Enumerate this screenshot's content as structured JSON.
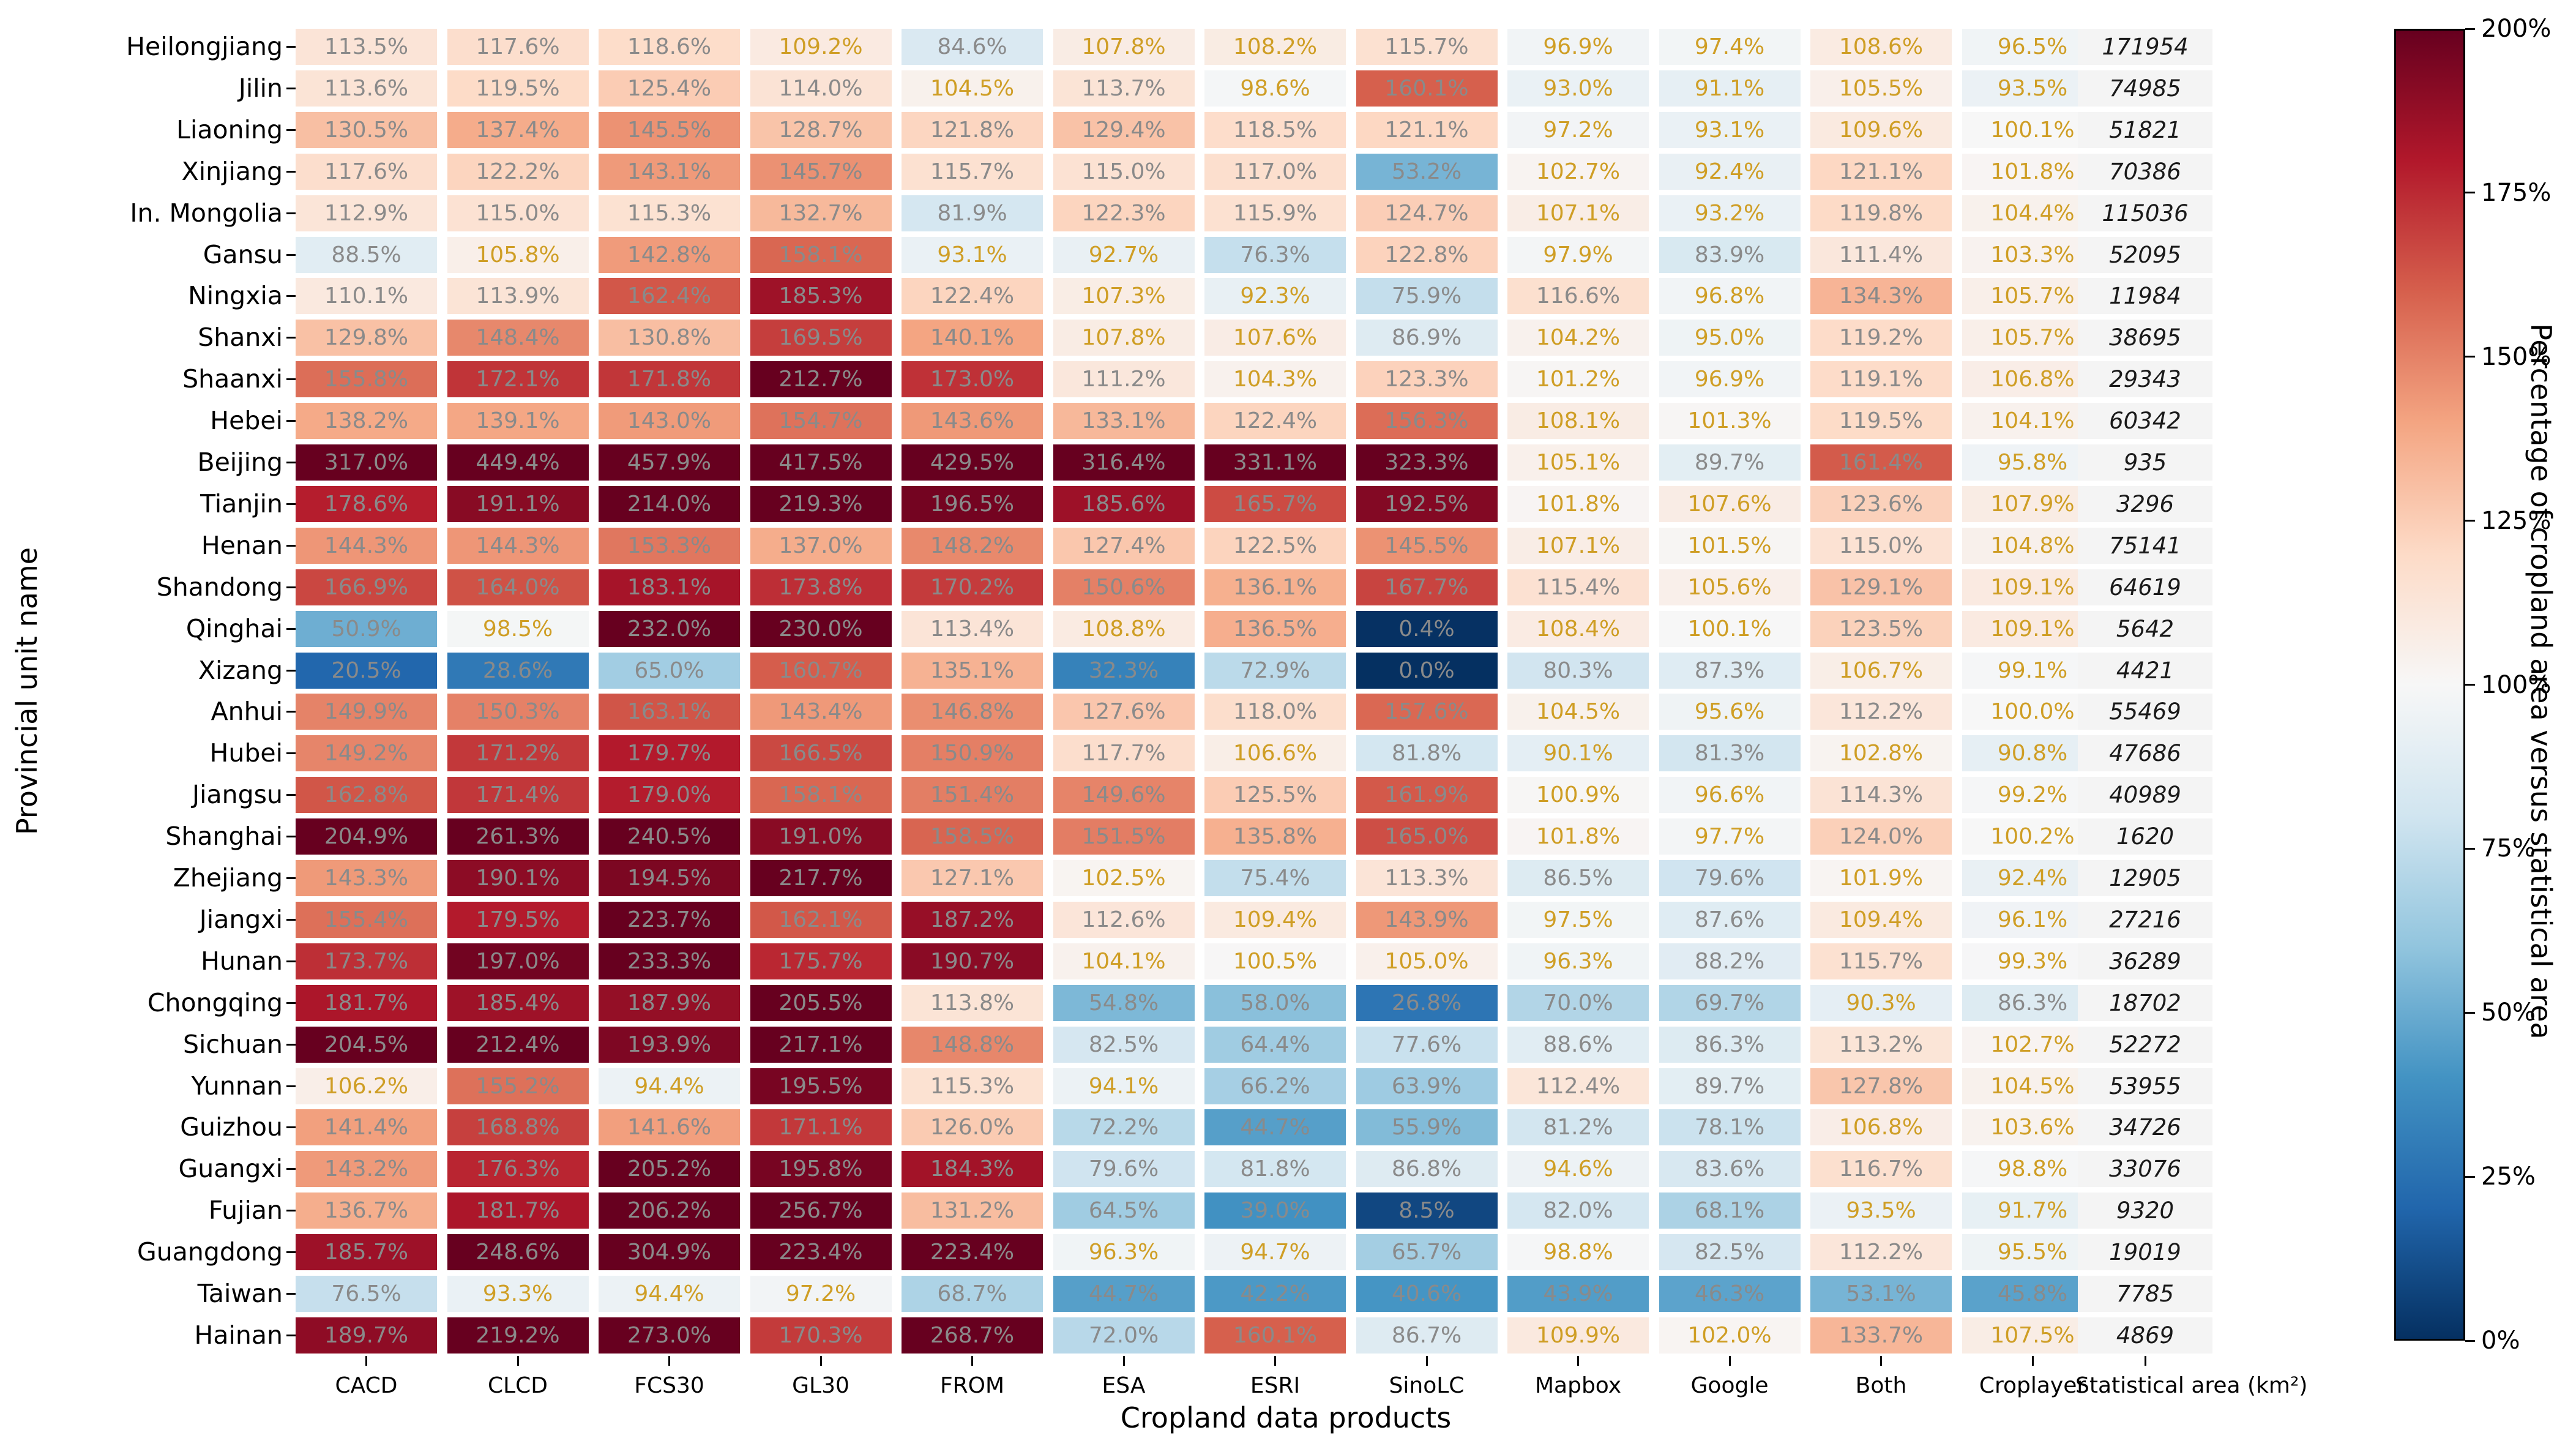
{
  "chart_data": {
    "type": "heatmap",
    "xlabel": "Cropland data products",
    "ylabel": "Provincial unit name",
    "columns": [
      "CACD",
      "CLCD",
      "FCS30",
      "GL30",
      "FROM",
      "ESA",
      "ESRI",
      "SinoLC",
      "Mapbox",
      "Google",
      "Both",
      "Croplayer"
    ],
    "stat_column_label": "Statistical area (km²)",
    "rows": [
      "Heilongjiang",
      "Jilin",
      "Liaoning",
      "Xinjiang",
      "In. Mongolia",
      "Gansu",
      "Ningxia",
      "Shanxi",
      "Shaanxi",
      "Hebei",
      "Beijing",
      "Tianjin",
      "Henan",
      "Shandong",
      "Qinghai",
      "Xizang",
      "Anhui",
      "Hubei",
      "Jiangsu",
      "Shanghai",
      "Zhejiang",
      "Jiangxi",
      "Hunan",
      "Chongqing",
      "Sichuan",
      "Yunnan",
      "Guizhou",
      "Guangxi",
      "Fujian",
      "Guangdong",
      "Taiwan",
      "Hainan"
    ],
    "values_percent": [
      [
        113.5,
        117.6,
        118.6,
        109.2,
        84.6,
        107.8,
        108.2,
        115.7,
        96.9,
        97.4,
        108.6,
        96.5
      ],
      [
        113.6,
        119.5,
        125.4,
        114.0,
        104.5,
        113.7,
        98.6,
        160.1,
        93.0,
        91.1,
        105.5,
        93.5
      ],
      [
        130.5,
        137.4,
        145.5,
        128.7,
        121.8,
        129.4,
        118.5,
        121.1,
        97.2,
        93.1,
        109.6,
        100.1
      ],
      [
        117.6,
        122.2,
        143.1,
        145.7,
        115.7,
        115.0,
        117.0,
        53.2,
        102.7,
        92.4,
        121.1,
        101.8
      ],
      [
        112.9,
        115.0,
        115.3,
        132.7,
        81.9,
        122.3,
        115.9,
        124.7,
        107.1,
        93.2,
        119.8,
        104.4
      ],
      [
        88.5,
        105.8,
        142.8,
        158.1,
        93.1,
        92.7,
        76.3,
        122.8,
        97.9,
        83.9,
        111.4,
        103.3
      ],
      [
        110.1,
        113.9,
        162.4,
        185.3,
        122.4,
        107.3,
        92.3,
        75.9,
        116.6,
        96.8,
        134.3,
        105.7
      ],
      [
        129.8,
        148.4,
        130.8,
        169.5,
        140.1,
        107.8,
        107.6,
        86.9,
        104.2,
        95.0,
        119.2,
        105.7
      ],
      [
        155.8,
        172.1,
        171.8,
        212.7,
        173.0,
        111.2,
        104.3,
        123.3,
        101.2,
        96.9,
        119.1,
        106.8
      ],
      [
        138.2,
        139.1,
        143.0,
        154.7,
        143.6,
        133.1,
        122.4,
        156.3,
        108.1,
        101.3,
        119.5,
        104.1
      ],
      [
        317.0,
        449.4,
        457.9,
        417.5,
        429.5,
        316.4,
        331.1,
        323.3,
        105.1,
        89.7,
        161.4,
        95.8
      ],
      [
        178.6,
        191.1,
        214.0,
        219.3,
        196.5,
        185.6,
        165.7,
        192.5,
        101.8,
        107.6,
        123.6,
        107.9
      ],
      [
        144.3,
        144.3,
        153.3,
        137.0,
        148.2,
        127.4,
        122.5,
        145.5,
        107.1,
        101.5,
        115.0,
        104.8
      ],
      [
        166.9,
        164.0,
        183.1,
        173.8,
        170.2,
        150.6,
        136.1,
        167.7,
        115.4,
        105.6,
        129.1,
        109.1
      ],
      [
        50.9,
        98.5,
        232.0,
        230.0,
        113.4,
        108.8,
        136.5,
        0.4,
        108.4,
        100.1,
        123.5,
        109.1
      ],
      [
        20.5,
        28.6,
        65.0,
        160.7,
        135.1,
        32.3,
        72.9,
        0.0,
        80.3,
        87.3,
        106.7,
        99.1
      ],
      [
        149.9,
        150.3,
        163.1,
        143.4,
        146.8,
        127.6,
        118.0,
        157.6,
        104.5,
        95.6,
        112.2,
        100.0
      ],
      [
        149.2,
        171.2,
        179.7,
        166.5,
        150.9,
        117.7,
        106.6,
        81.8,
        90.1,
        81.3,
        102.8,
        90.8
      ],
      [
        162.8,
        171.4,
        179.0,
        158.1,
        151.4,
        149.6,
        125.5,
        161.9,
        100.9,
        96.6,
        114.3,
        99.2
      ],
      [
        204.9,
        261.3,
        240.5,
        191.0,
        158.5,
        151.5,
        135.8,
        165.0,
        101.8,
        97.7,
        124.0,
        100.2
      ],
      [
        143.3,
        190.1,
        194.5,
        217.7,
        127.1,
        102.5,
        75.4,
        113.3,
        86.5,
        79.6,
        101.9,
        92.4
      ],
      [
        155.4,
        179.5,
        223.7,
        162.1,
        187.2,
        112.6,
        109.4,
        143.9,
        97.5,
        87.6,
        109.4,
        96.1
      ],
      [
        173.7,
        197.0,
        233.3,
        175.7,
        190.7,
        104.1,
        100.5,
        105.0,
        96.3,
        88.2,
        115.7,
        99.3
      ],
      [
        181.7,
        185.4,
        187.9,
        205.5,
        113.8,
        54.8,
        58.0,
        26.8,
        70.0,
        69.7,
        90.3,
        86.3
      ],
      [
        204.5,
        212.4,
        193.9,
        217.1,
        148.8,
        82.5,
        64.4,
        77.6,
        88.6,
        86.3,
        113.2,
        102.7
      ],
      [
        106.2,
        155.2,
        94.4,
        195.5,
        115.3,
        94.1,
        66.2,
        63.9,
        112.4,
        89.7,
        127.8,
        104.5
      ],
      [
        141.4,
        168.8,
        141.6,
        171.1,
        126.0,
        72.2,
        44.7,
        55.9,
        81.2,
        78.1,
        106.8,
        103.6
      ],
      [
        143.2,
        176.3,
        205.2,
        195.8,
        184.3,
        79.6,
        81.8,
        86.8,
        94.6,
        83.6,
        116.7,
        98.8
      ],
      [
        136.7,
        181.7,
        206.2,
        256.7,
        131.2,
        64.5,
        39.0,
        8.5,
        82.0,
        68.1,
        93.5,
        91.7
      ],
      [
        185.7,
        248.6,
        304.9,
        223.4,
        223.4,
        96.3,
        94.7,
        65.7,
        98.8,
        82.5,
        112.2,
        95.5
      ],
      [
        76.5,
        93.3,
        94.4,
        97.2,
        68.7,
        44.7,
        42.2,
        40.6,
        43.9,
        46.3,
        53.1,
        45.8
      ],
      [
        189.7,
        219.2,
        273.0,
        170.3,
        268.7,
        72.0,
        160.1,
        86.7,
        109.9,
        102.0,
        133.7,
        107.5
      ]
    ],
    "statistical_area_km2": [
      171954,
      74985,
      51821,
      70386,
      115036,
      52095,
      11984,
      38695,
      29343,
      60342,
      935,
      3296,
      75141,
      64619,
      5642,
      4421,
      55469,
      47686,
      40989,
      1620,
      12905,
      27216,
      36289,
      18702,
      52272,
      53955,
      34726,
      33076,
      9320,
      19019,
      7785,
      4869
    ],
    "colorbar": {
      "label": "Percentage of cropland area versus statistical area",
      "min": 0,
      "max": 200,
      "tick_values": [
        200,
        175,
        150,
        125,
        100,
        75,
        50,
        25,
        0
      ],
      "tick_suffix": "%",
      "colormap_stops_bottom_to_top": [
        "#053061",
        "#2166ac",
        "#4393c3",
        "#92c5de",
        "#d1e5f0",
        "#f7f7f7",
        "#fddbc7",
        "#f4a582",
        "#d6604d",
        "#b2182b",
        "#67001f"
      ]
    },
    "text_colors": {
      "near_100": "#cf9e25",
      "other": "#8a8a8a",
      "near_100_rule": "value between 90 and 110 inclusive"
    }
  }
}
